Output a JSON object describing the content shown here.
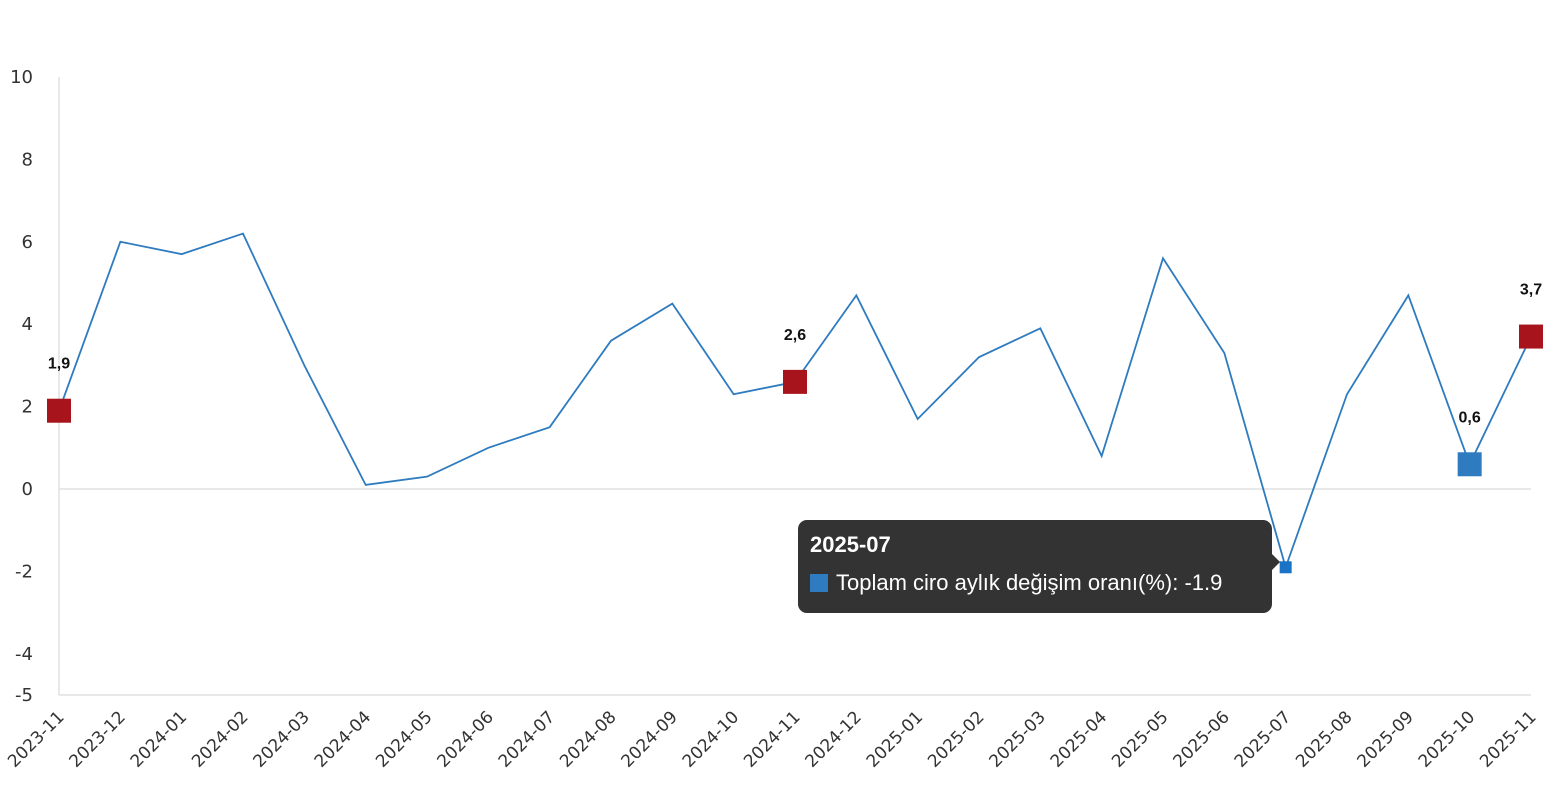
{
  "chart_data": {
    "type": "line",
    "title": "",
    "xlabel": "",
    "ylabel": "",
    "ylim": [
      -5,
      10
    ],
    "yticks": [
      "10",
      "8",
      "6",
      "4",
      "2",
      "0",
      "-2",
      "-4",
      "-5"
    ],
    "ytick_values": [
      10,
      8,
      6,
      4,
      2,
      0,
      -2,
      -4,
      -5
    ],
    "grid": false,
    "categories": [
      "2023-11",
      "2023-12",
      "2024-01",
      "2024-02",
      "2024-03",
      "2024-04",
      "2024-05",
      "2024-06",
      "2024-07",
      "2024-08",
      "2024-09",
      "2024-10",
      "2024-11",
      "2024-12",
      "2025-01",
      "2025-02",
      "2025-03",
      "2025-04",
      "2025-05",
      "2025-06",
      "2025-07",
      "2025-08",
      "2025-09",
      "2025-10",
      "2025-11"
    ],
    "series": [
      {
        "name": "Toplam ciro aylık değişim oranı(%)",
        "color": "#2e7bbf",
        "values": [
          1.9,
          6.0,
          5.7,
          6.2,
          3.0,
          0.1,
          0.3,
          1.0,
          1.5,
          3.6,
          4.5,
          2.3,
          2.6,
          4.7,
          1.7,
          3.2,
          3.9,
          0.8,
          5.6,
          3.3,
          -1.9,
          2.3,
          4.7,
          0.6,
          3.7
        ]
      }
    ],
    "highlighted_points": [
      {
        "index": 0,
        "label": "1,9",
        "color": "#a8141b"
      },
      {
        "index": 12,
        "label": "2,6",
        "color": "#a8141b"
      },
      {
        "index": 23,
        "label": "0,6",
        "color": "#2e7bbf"
      },
      {
        "index": 24,
        "label": "3,7",
        "color": "#a8141b"
      }
    ],
    "hover_index": 20
  },
  "tooltip": {
    "title": "2025-07",
    "text": "Toplam ciro aylık değişim oranı(%): -1.9",
    "swatch_color": "#2e7bbf"
  }
}
